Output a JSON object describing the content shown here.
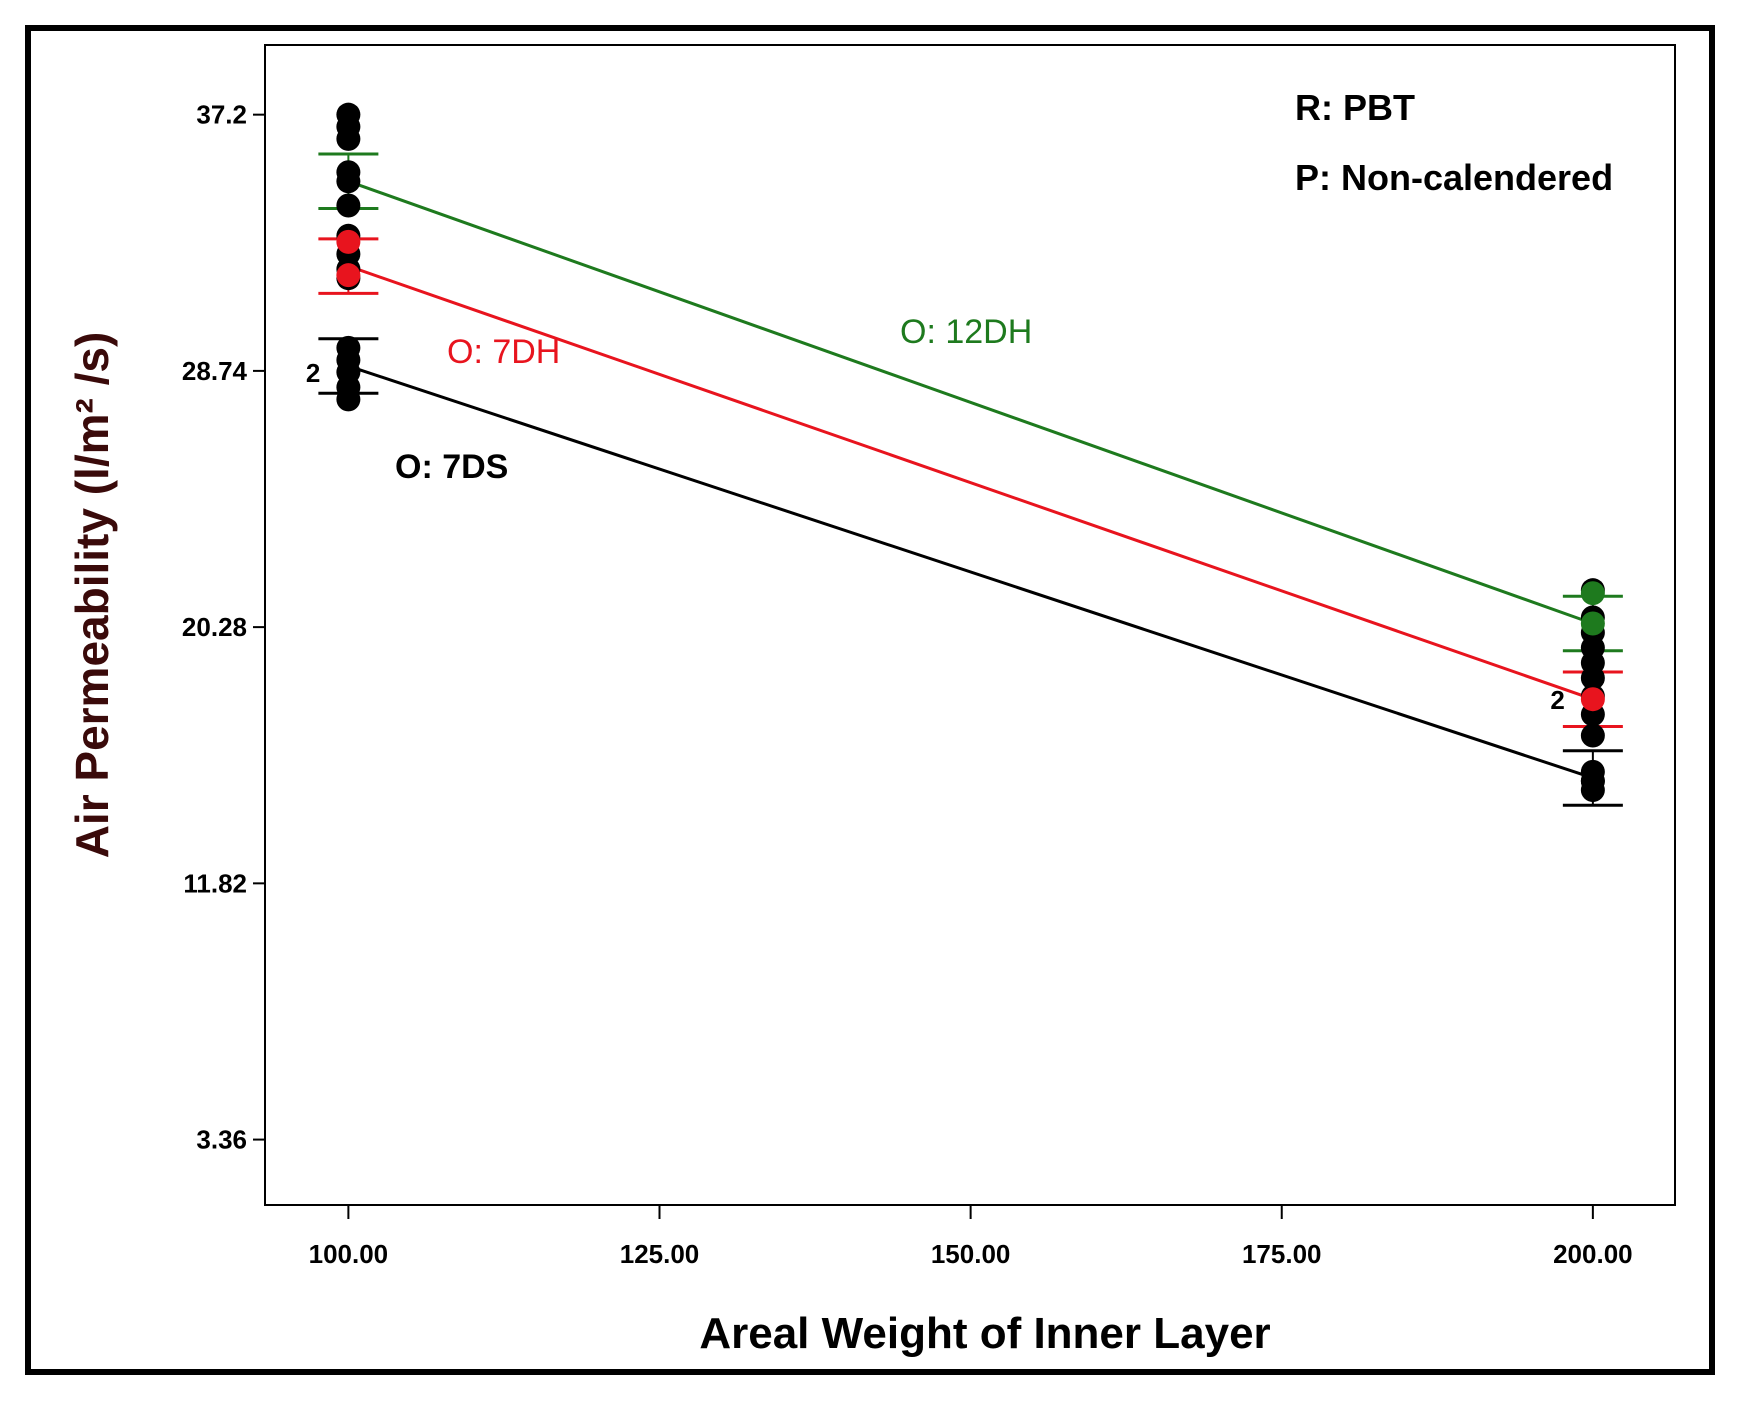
{
  "chart_data": {
    "type": "line",
    "xlabel": "Areal Weight of Inner Layer",
    "ylabel": "Air Permeability (l/m² /s)",
    "x_ticks": [
      "100.00",
      "125.00",
      "150.00",
      "175.00",
      "200.00"
    ],
    "y_ticks": [
      "3.36",
      "11.82",
      "20.28",
      "28.74",
      "37.2"
    ],
    "xlim": [
      93.3,
      206.6
    ],
    "ylim": [
      1.2,
      39.5
    ],
    "annotations": [
      "R: PBT",
      "P: Non-calendered"
    ],
    "series": [
      {
        "name": "O: 12DH",
        "color": "#1e7a1e",
        "x": [
          100,
          200
        ],
        "y": [
          35.0,
          20.4
        ],
        "error_bar": 0.9,
        "points": [
          {
            "x": 200,
            "y": 21.4,
            "count": ""
          },
          {
            "x": 200,
            "y": 20.4,
            "count": ""
          }
        ]
      },
      {
        "name": "O: 7DH",
        "color": "#e8141e",
        "x": [
          100,
          200
        ],
        "y": [
          32.2,
          17.9
        ],
        "error_bar": 0.9,
        "points": [
          {
            "x": 100,
            "y": 33.0,
            "count": ""
          },
          {
            "x": 100,
            "y": 31.9,
            "count": ""
          },
          {
            "x": 200,
            "y": 17.9,
            "count": "2"
          }
        ]
      },
      {
        "name": "O: 7DS",
        "color": "#000000",
        "x": [
          100,
          200
        ],
        "y": [
          28.9,
          15.3
        ],
        "error_bar": 0.9,
        "points": [
          {
            "x": 200,
            "y": 15.2,
            "count": ""
          }
        ]
      }
    ],
    "black_points": [
      {
        "x": 100,
        "y": 37.2,
        "count": ""
      },
      {
        "x": 100,
        "y": 36.8,
        "count": ""
      },
      {
        "x": 100,
        "y": 36.4,
        "count": ""
      },
      {
        "x": 100,
        "y": 35.3,
        "count": ""
      },
      {
        "x": 100,
        "y": 35.0,
        "count": ""
      },
      {
        "x": 100,
        "y": 34.2,
        "count": ""
      },
      {
        "x": 100,
        "y": 33.2,
        "count": ""
      },
      {
        "x": 100,
        "y": 32.6,
        "count": ""
      },
      {
        "x": 100,
        "y": 32.1,
        "count": ""
      },
      {
        "x": 100,
        "y": 31.8,
        "count": ""
      },
      {
        "x": 100,
        "y": 29.5,
        "count": ""
      },
      {
        "x": 100,
        "y": 29.1,
        "count": ""
      },
      {
        "x": 100,
        "y": 28.7,
        "count": "2"
      },
      {
        "x": 100,
        "y": 28.2,
        "count": ""
      },
      {
        "x": 100,
        "y": 27.8,
        "count": ""
      },
      {
        "x": 200,
        "y": 21.5,
        "count": ""
      },
      {
        "x": 200,
        "y": 20.6,
        "count": ""
      },
      {
        "x": 200,
        "y": 20.1,
        "count": ""
      },
      {
        "x": 200,
        "y": 19.6,
        "count": ""
      },
      {
        "x": 200,
        "y": 19.1,
        "count": ""
      },
      {
        "x": 200,
        "y": 18.6,
        "count": ""
      },
      {
        "x": 200,
        "y": 18.0,
        "count": ""
      },
      {
        "x": 200,
        "y": 17.4,
        "count": ""
      },
      {
        "x": 200,
        "y": 16.7,
        "count": ""
      },
      {
        "x": 200,
        "y": 15.5,
        "count": ""
      },
      {
        "x": 200,
        "y": 15.2,
        "count": ""
      },
      {
        "x": 200,
        "y": 14.9,
        "count": ""
      }
    ]
  }
}
